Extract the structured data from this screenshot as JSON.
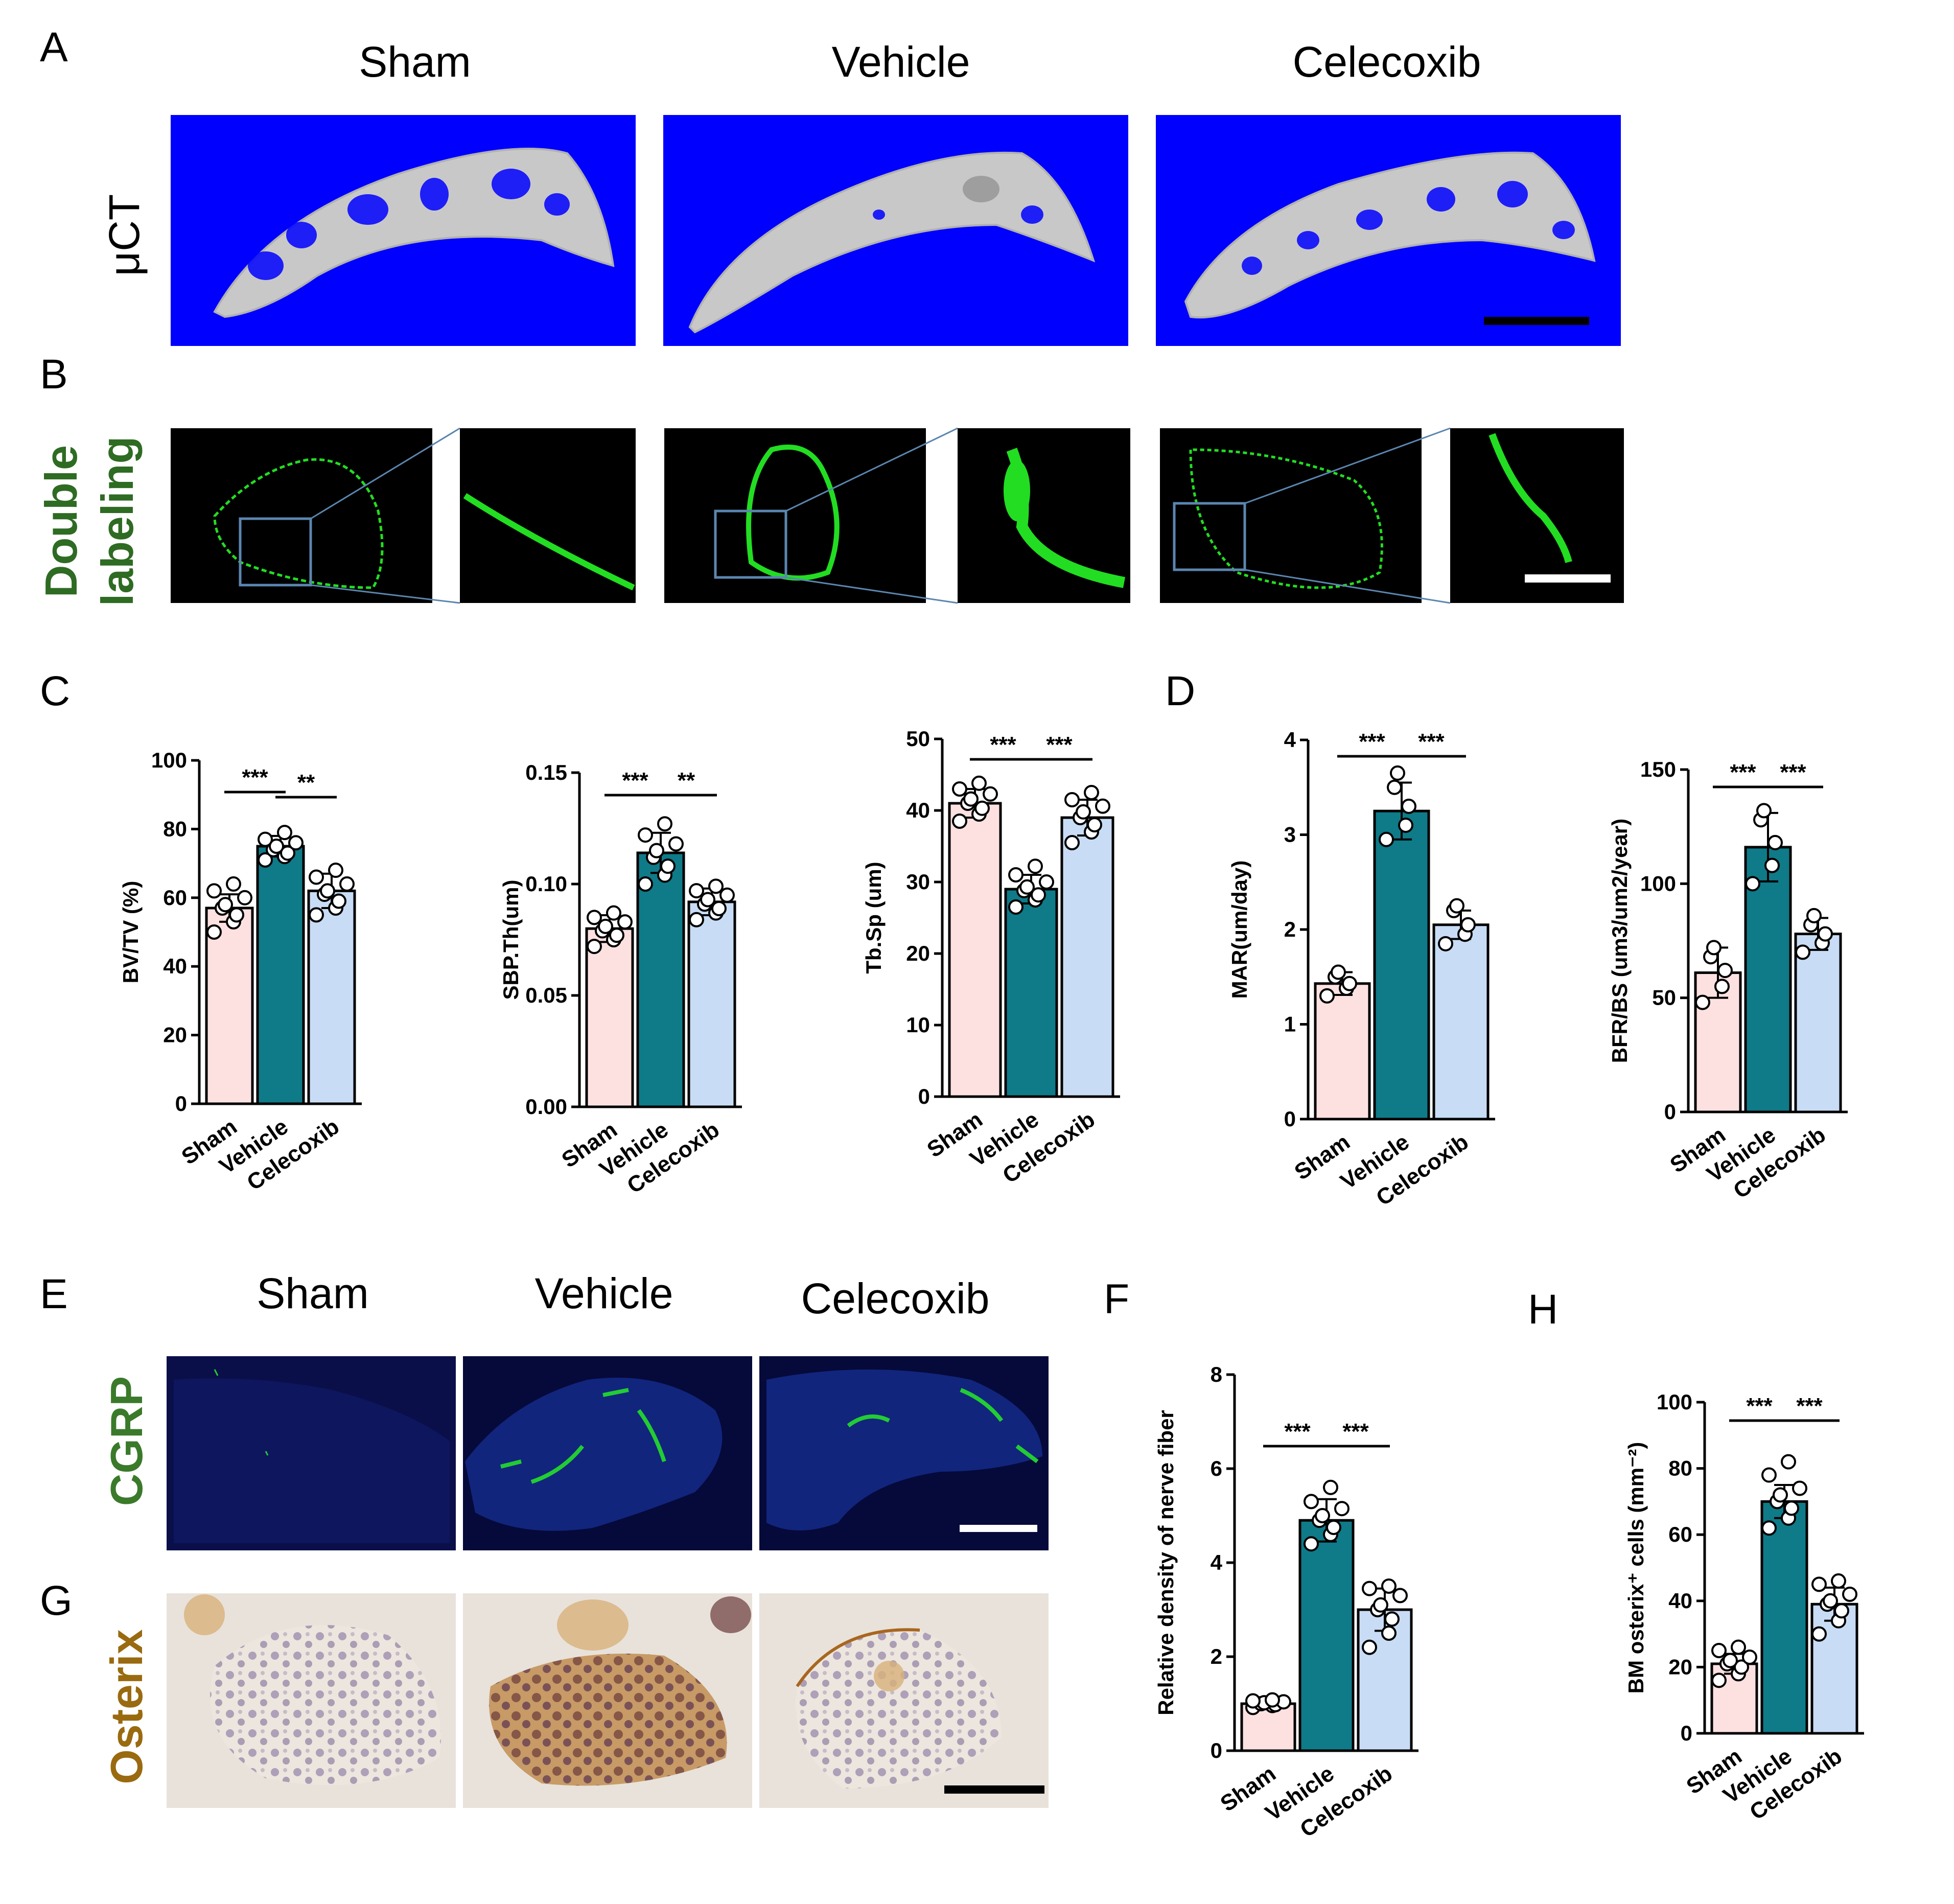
{
  "panel_letters": {
    "A": "A",
    "B": "B",
    "C": "C",
    "D": "D",
    "E": "E",
    "F": "F",
    "G": "G",
    "H": "H"
  },
  "panel_a": {
    "groups": [
      "Sham",
      "Vehicle",
      "Celecoxib"
    ],
    "row_label": "μCT",
    "background_color": "#0000ff",
    "bone_color": "#c8c8c8"
  },
  "panel_b": {
    "row_label": [
      "Double",
      "labeling"
    ],
    "label_color": "#2e6b23",
    "signal_color": "#22dd22",
    "inset_box_color": "#5b86b0"
  },
  "panel_e": {
    "groups": [
      "Sham",
      "Vehicle",
      "Celecoxib"
    ],
    "row_label": "CGRP",
    "label_color": "#3a7a2a",
    "background_color": "#0a0f5a",
    "signal_color": "#22cc33"
  },
  "panel_g": {
    "row_label": "Osterix",
    "label_color": "#9a6a10",
    "background_color": "#e8e2da",
    "cell_color": "#6a4f8a",
    "stain_color": "#a8661e"
  },
  "colors": {
    "sham": "#fde1e1",
    "vehicle": "#0f7a88",
    "celecoxib": "#c8dcf5"
  },
  "chart_data": [
    {
      "id": "bvtv",
      "type": "bar",
      "categories": [
        "Sham",
        "Vehicle",
        "Celecoxib"
      ],
      "values": [
        57,
        75,
        62
      ],
      "errors": [
        4,
        3,
        5
      ],
      "points": [
        [
          50,
          53,
          55,
          57,
          58,
          60,
          62,
          64
        ],
        [
          71,
          72,
          73,
          74,
          75,
          76,
          77,
          79
        ],
        [
          55,
          57,
          59,
          61,
          62,
          64,
          66,
          68
        ]
      ],
      "ylabel": "BV/TV (%)",
      "ylim": [
        0,
        100
      ],
      "yticks": [
        "0",
        "20",
        "40",
        "60",
        "80",
        "100"
      ],
      "sig": [
        {
          "from": 0,
          "to": 1,
          "label": "***"
        },
        {
          "from": 1,
          "to": 2,
          "label": "**"
        }
      ]
    },
    {
      "id": "sbpth",
      "type": "bar",
      "categories": [
        "Sham",
        "Vehicle",
        "Celecoxib"
      ],
      "values": [
        0.08,
        0.114,
        0.092
      ],
      "errors": [
        0.006,
        0.009,
        0.006
      ],
      "points": [
        [
          0.072,
          0.075,
          0.077,
          0.079,
          0.081,
          0.083,
          0.085,
          0.087
        ],
        [
          0.1,
          0.104,
          0.108,
          0.112,
          0.115,
          0.118,
          0.122,
          0.127
        ],
        [
          0.084,
          0.087,
          0.089,
          0.091,
          0.093,
          0.095,
          0.097,
          0.099
        ]
      ],
      "ylabel": "SBP.Th(um)",
      "ylim": [
        0,
        0.15
      ],
      "yticks": [
        "0.00",
        "0.05",
        "0.10",
        "0.15"
      ],
      "sig": [
        {
          "from": 0,
          "to": 1,
          "label": "***"
        },
        {
          "from": 1,
          "to": 2,
          "label": "**"
        }
      ]
    },
    {
      "id": "tbsp",
      "type": "bar",
      "categories": [
        "Sham",
        "Vehicle",
        "Celecoxib"
      ],
      "values": [
        41,
        29,
        39
      ],
      "errors": [
        2,
        2,
        2.5
      ],
      "points": [
        [
          38.5,
          39.5,
          40.3,
          41,
          41.6,
          42.3,
          43,
          43.8
        ],
        [
          26.5,
          27.5,
          28.2,
          28.8,
          29.3,
          30,
          31,
          32.2
        ],
        [
          35.5,
          37,
          38,
          39,
          39.8,
          40.6,
          41.5,
          42.5
        ]
      ],
      "ylabel": "Tb.Sp (um)",
      "ylim": [
        0,
        50
      ],
      "yticks": [
        "0",
        "10",
        "20",
        "30",
        "40",
        "50"
      ],
      "sig": [
        {
          "from": 0,
          "to": 1,
          "label": "***"
        },
        {
          "from": 1,
          "to": 2,
          "label": "***"
        }
      ]
    },
    {
      "id": "mar",
      "type": "bar",
      "categories": [
        "Sham",
        "Vehicle",
        "Celecoxib"
      ],
      "values": [
        1.43,
        3.25,
        2.05
      ],
      "errors": [
        0.12,
        0.3,
        0.15
      ],
      "points": [
        [
          1.3,
          1.38,
          1.43,
          1.5,
          1.55
        ],
        [
          2.95,
          3.1,
          3.3,
          3.5,
          3.65
        ],
        [
          1.85,
          1.95,
          2.05,
          2.2,
          2.25
        ]
      ],
      "ylabel": "MAR(um/day)",
      "ylim": [
        0,
        4
      ],
      "yticks": [
        "0",
        "1",
        "2",
        "3",
        "4"
      ],
      "sig": [
        {
          "from": 0,
          "to": 1,
          "label": "***"
        },
        {
          "from": 1,
          "to": 2,
          "label": "***"
        }
      ]
    },
    {
      "id": "bfrbs",
      "type": "bar",
      "categories": [
        "Sham",
        "Vehicle",
        "Celecoxib"
      ],
      "values": [
        61,
        116,
        78
      ],
      "errors": [
        11,
        15,
        7
      ],
      "points": [
        [
          48,
          55,
          62,
          68,
          72
        ],
        [
          100,
          108,
          118,
          128,
          132
        ],
        [
          70,
          74,
          78,
          82,
          86
        ]
      ],
      "ylabel": "BFR/BS (um3/um2/year)",
      "ylim": [
        0,
        150
      ],
      "yticks": [
        "0",
        "50",
        "100",
        "150"
      ],
      "sig": [
        {
          "from": 0,
          "to": 1,
          "label": "***"
        },
        {
          "from": 1,
          "to": 2,
          "label": "***"
        }
      ]
    },
    {
      "id": "nerve",
      "type": "bar",
      "categories": [
        "Sham",
        "Vehicle",
        "Celecoxib"
      ],
      "values": [
        1.0,
        4.9,
        3.0
      ],
      "errors": [
        0.08,
        0.45,
        0.45
      ],
      "points": [
        [
          0.92,
          0.96,
          0.98,
          1.0,
          1.02,
          1.04,
          1.06,
          1.08
        ],
        [
          4.4,
          4.6,
          4.75,
          4.9,
          5.0,
          5.15,
          5.3,
          5.6
        ],
        [
          2.2,
          2.5,
          2.8,
          3.0,
          3.1,
          3.3,
          3.45,
          3.5
        ]
      ],
      "ylabel": "Relative density of nerve fiber",
      "ylim": [
        0,
        8
      ],
      "yticks": [
        "0",
        "2",
        "4",
        "6",
        "8"
      ],
      "sig": [
        {
          "from": 0,
          "to": 1,
          "label": "***"
        },
        {
          "from": 1,
          "to": 2,
          "label": "***"
        }
      ]
    },
    {
      "id": "osterix",
      "type": "bar",
      "categories": [
        "Sham",
        "Vehicle",
        "Celecoxib"
      ],
      "values": [
        21,
        70,
        39
      ],
      "errors": [
        3,
        5,
        5
      ],
      "points": [
        [
          16,
          18,
          20,
          21,
          22,
          23,
          25,
          26
        ],
        [
          62,
          65,
          68,
          70,
          72,
          74,
          78,
          82
        ],
        [
          30,
          34,
          37,
          39,
          40,
          42,
          45,
          46
        ]
      ],
      "ylabel": "BM osterix⁺ cells  (mm⁻²)",
      "ylim": [
        0,
        100
      ],
      "yticks": [
        "0",
        "20",
        "40",
        "60",
        "80",
        "100"
      ],
      "sig": [
        {
          "from": 0,
          "to": 1,
          "label": "***"
        },
        {
          "from": 1,
          "to": 2,
          "label": "***"
        }
      ]
    }
  ]
}
